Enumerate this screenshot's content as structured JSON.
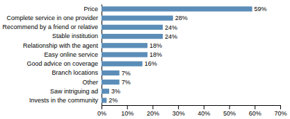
{
  "chart_data": {
    "type": "bar",
    "orientation": "horizontal",
    "categories": [
      "Invests in the community",
      "Saw intriguing ad",
      "Other",
      "Branch locations",
      "Good advice on coverage",
      "Easy online service",
      "Relationship with the agent",
      "Stable institution",
      "Recommend by a friend or relative",
      "Complete service in one provider",
      "Price"
    ],
    "values": [
      2,
      3,
      7,
      7,
      16,
      18,
      18,
      24,
      24,
      28,
      59
    ],
    "value_labels": [
      "2%",
      "3%",
      "7%",
      "7%",
      "16%",
      "18%",
      "18%",
      "24%",
      "24%",
      "28%",
      "59%"
    ],
    "data_labels": true,
    "color": "#5B8DB8",
    "xlim": [
      0,
      70
    ],
    "xticks": [
      {
        "value": 0,
        "label": "0%"
      },
      {
        "value": 10,
        "label": "10%"
      },
      {
        "value": 20,
        "label": "20%"
      },
      {
        "value": 30,
        "label": "30%"
      },
      {
        "value": 40,
        "label": "40%"
      },
      {
        "value": 50,
        "label": "50%"
      },
      {
        "value": 60,
        "label": "60%"
      },
      {
        "value": 70,
        "label": "70%"
      }
    ],
    "grid": false
  }
}
